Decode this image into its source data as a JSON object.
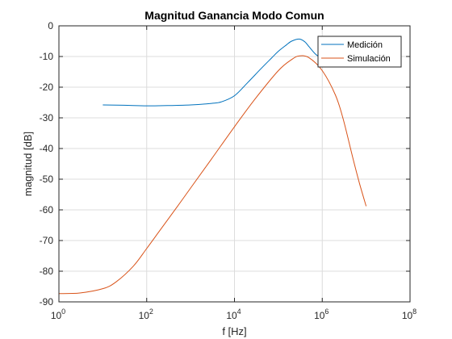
{
  "chart_data": {
    "type": "line",
    "title": "Magnitud Ganancia Modo Comun",
    "xlabel": "f [Hz]",
    "ylabel": "magnitud [dB]",
    "xscale": "log",
    "xlim": [
      1,
      100000000
    ],
    "ylim": [
      -90,
      0
    ],
    "x_ticks": [
      {
        "value": 1,
        "base": "10",
        "exp": "0"
      },
      {
        "value": 100,
        "base": "10",
        "exp": "2"
      },
      {
        "value": 10000,
        "base": "10",
        "exp": "4"
      },
      {
        "value": 1000000,
        "base": "10",
        "exp": "6"
      },
      {
        "value": 100000000,
        "base": "10",
        "exp": "8"
      }
    ],
    "y_ticks": [
      {
        "value": 0,
        "label": "0"
      },
      {
        "value": -10,
        "label": "-10"
      },
      {
        "value": -20,
        "label": "-20"
      },
      {
        "value": -30,
        "label": "-30"
      },
      {
        "value": -40,
        "label": "-40"
      },
      {
        "value": -50,
        "label": "-50"
      },
      {
        "value": -60,
        "label": "-60"
      },
      {
        "value": -70,
        "label": "-70"
      },
      {
        "value": -80,
        "label": "-80"
      },
      {
        "value": -90,
        "label": "-90"
      }
    ],
    "grid": true,
    "legend_position": "top-right",
    "series": [
      {
        "name": "Medición",
        "color": "#0072bd",
        "x": [
          10,
          30,
          100,
          300,
          1000,
          3000,
          5000,
          10000,
          20000,
          40000,
          70000,
          100000,
          150000,
          200000,
          300000,
          400000,
          500000,
          700000,
          1000000
        ],
        "y": [
          -25.8,
          -25.9,
          -26.1,
          -26.0,
          -25.8,
          -25.3,
          -24.8,
          -22.8,
          -18.5,
          -14.0,
          -10.5,
          -8.3,
          -6.3,
          -5.0,
          -4.3,
          -5.2,
          -6.8,
          -9.2,
          -10.8
        ]
      },
      {
        "name": "Simulación",
        "color": "#d95319",
        "x": [
          1,
          3,
          10,
          20,
          50,
          100,
          200,
          500,
          1000,
          3000,
          10000,
          30000,
          100000,
          200000,
          300000,
          500000,
          1000000,
          2000000,
          3000000,
          5000000,
          7000000,
          10000000
        ],
        "y": [
          -87.3,
          -87.1,
          -85.7,
          -83.5,
          -78.3,
          -72.6,
          -66.7,
          -58.9,
          -52.9,
          -43.4,
          -32.9,
          -23.7,
          -14.6,
          -11.0,
          -9.8,
          -10.4,
          -14.6,
          -22.6,
          -30.4,
          -43.2,
          -51.2,
          -58.8
        ]
      }
    ]
  }
}
